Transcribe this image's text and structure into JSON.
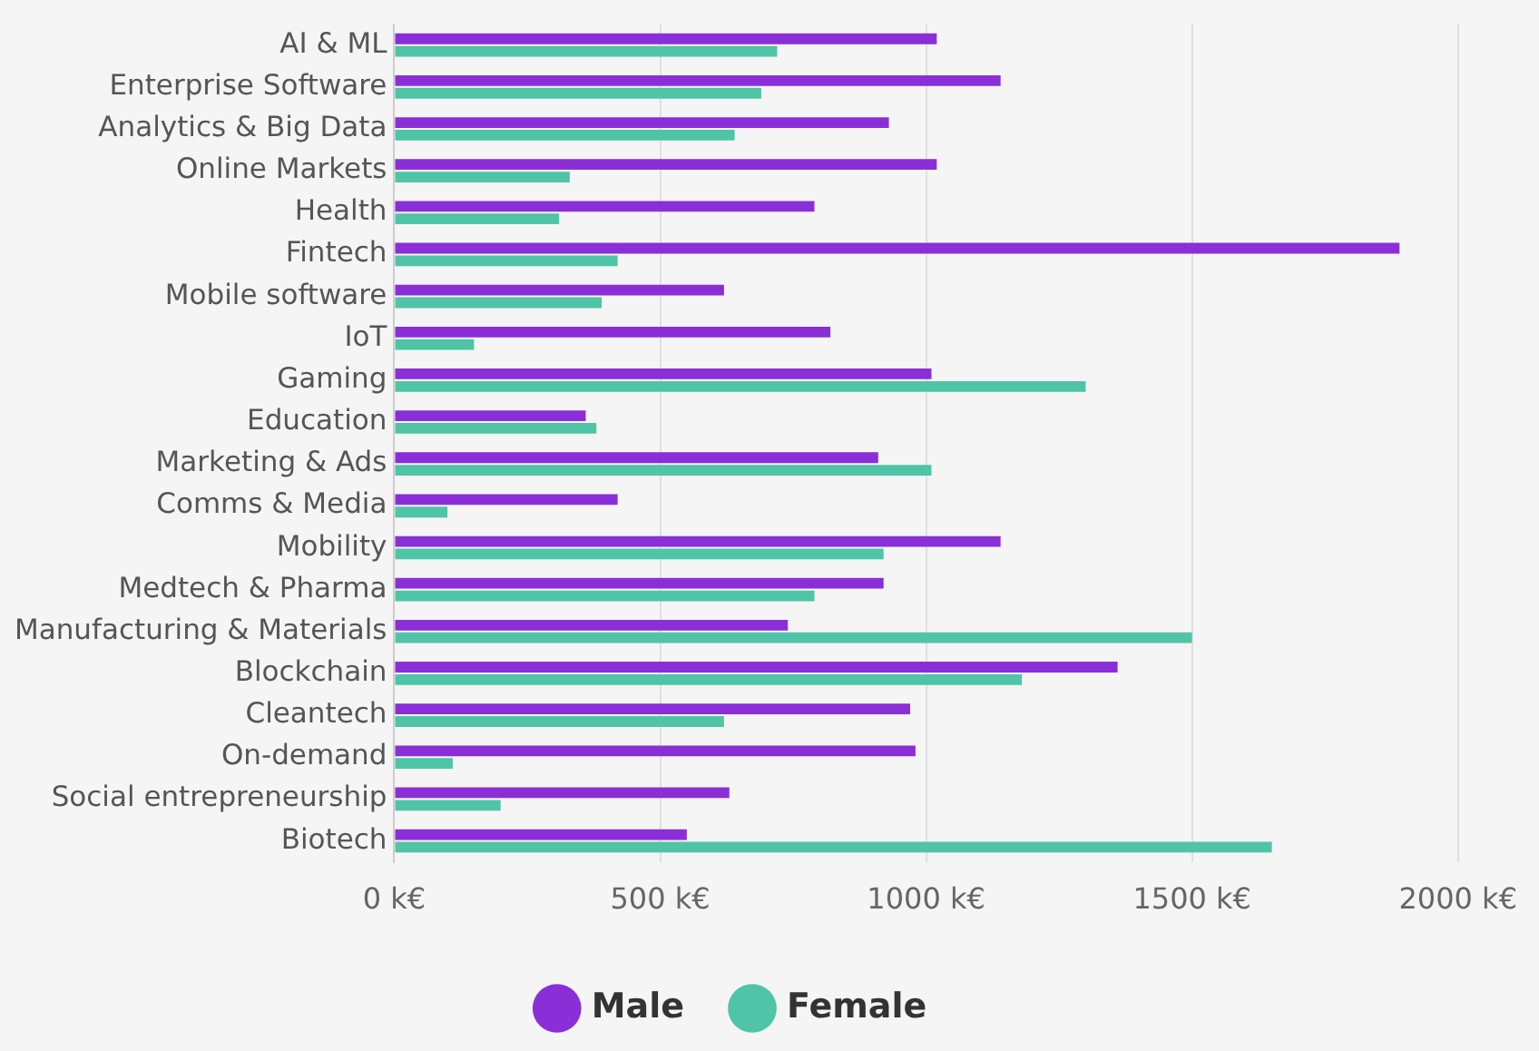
{
  "chart_data": {
    "type": "bar",
    "orientation": "horizontal",
    "categories": [
      "AI & ML",
      "Enterprise Software",
      "Analytics & Big Data",
      "Online Markets",
      "Health",
      "Fintech",
      "Mobile software",
      "IoT",
      "Gaming",
      "Education",
      "Marketing & Ads",
      "Comms & Media",
      "Mobility",
      "Medtech & Pharma",
      "Manufacturing & Materials",
      "Blockchain",
      "Cleantech",
      "On-demand",
      "Social entrepreneurship",
      "Biotech"
    ],
    "series": [
      {
        "name": "Male",
        "color": "#8a2fd8",
        "values": [
          1020,
          1140,
          930,
          1020,
          790,
          1890,
          620,
          820,
          1010,
          360,
          910,
          420,
          1140,
          920,
          740,
          1360,
          970,
          980,
          630,
          550
        ]
      },
      {
        "name": "Female",
        "color": "#4fc4a6",
        "values": [
          720,
          690,
          640,
          330,
          310,
          420,
          390,
          150,
          1300,
          380,
          1010,
          100,
          920,
          790,
          1500,
          1180,
          620,
          110,
          200,
          1650
        ]
      }
    ],
    "xlim": [
      0,
      2000
    ],
    "xticks": [
      {
        "value": 0,
        "label": "0 k€"
      },
      {
        "value": 500,
        "label": "500 k€"
      },
      {
        "value": 1000,
        "label": "1000 k€"
      },
      {
        "value": 1500,
        "label": "1500 k€"
      },
      {
        "value": 2000,
        "label": "2000 k€"
      }
    ],
    "grid": "x",
    "legend": "bottom",
    "marker": "circle"
  }
}
